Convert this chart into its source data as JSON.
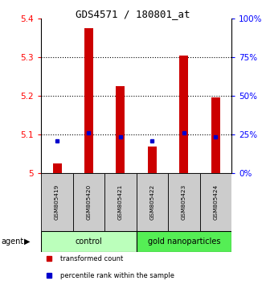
{
  "title": "GDS4571 / 180801_at",
  "samples": [
    "GSM805419",
    "GSM805420",
    "GSM805421",
    "GSM805422",
    "GSM805423",
    "GSM805424"
  ],
  "red_values": [
    5.025,
    5.375,
    5.225,
    5.068,
    5.305,
    5.195
  ],
  "blue_values": [
    5.083,
    5.103,
    5.093,
    5.083,
    5.103,
    5.093
  ],
  "y_min": 5.0,
  "y_max": 5.4,
  "y_ticks_left": [
    5.0,
    5.1,
    5.2,
    5.3,
    5.4
  ],
  "y_ticks_right": [
    0,
    25,
    50,
    75,
    100
  ],
  "bar_color": "#cc0000",
  "dot_color": "#0000cc",
  "control_color": "#bbffbb",
  "gold_color": "#55ee55",
  "sample_box_color": "#cccccc",
  "legend_red": "transformed count",
  "legend_blue": "percentile rank within the sample",
  "agent_label": "agent",
  "control_label": "control",
  "gold_label": "gold nanoparticles",
  "n_control": 3,
  "n_gold": 3
}
